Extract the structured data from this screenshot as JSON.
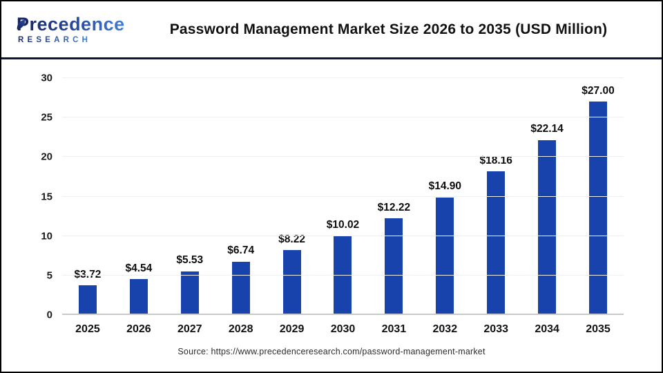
{
  "header": {
    "logo": {
      "line1": "Precedence",
      "line2": "RESEARCH"
    },
    "title": "Password Management Market Size 2026 to 2035 (USD Million)"
  },
  "chart_data": {
    "type": "bar",
    "title": "Password Management Market Size 2026 to 2035 (USD Million)",
    "categories": [
      "2025",
      "2026",
      "2027",
      "2028",
      "2029",
      "2030",
      "2031",
      "2032",
      "2033",
      "2034",
      "2035"
    ],
    "values": [
      3.72,
      4.54,
      5.53,
      6.74,
      8.22,
      10.02,
      12.22,
      14.9,
      18.16,
      22.14,
      27.0
    ],
    "value_labels": [
      "$3.72",
      "$4.54",
      "$5.53",
      "$6.74",
      "$8.22",
      "$10.02",
      "$12.22",
      "$14.90",
      "$18.16",
      "$22.14",
      "$27.00"
    ],
    "xlabel": "",
    "ylabel": "",
    "ylim": [
      0,
      30
    ],
    "yticks": [
      0,
      5,
      10,
      15,
      20,
      25,
      30
    ],
    "grid": true,
    "legend": false,
    "bar_color": "#1843ad"
  },
  "footer": {
    "source": "Source: https://www.precedenceresearch.com/password-management-market"
  },
  "colors": {
    "bar": "#1843ad",
    "divider": "#0e1538",
    "gridline": "#efefef",
    "baseline": "#c8c8c8",
    "logo_dark": "#141f5e",
    "logo_light": "#3f7fd9"
  }
}
